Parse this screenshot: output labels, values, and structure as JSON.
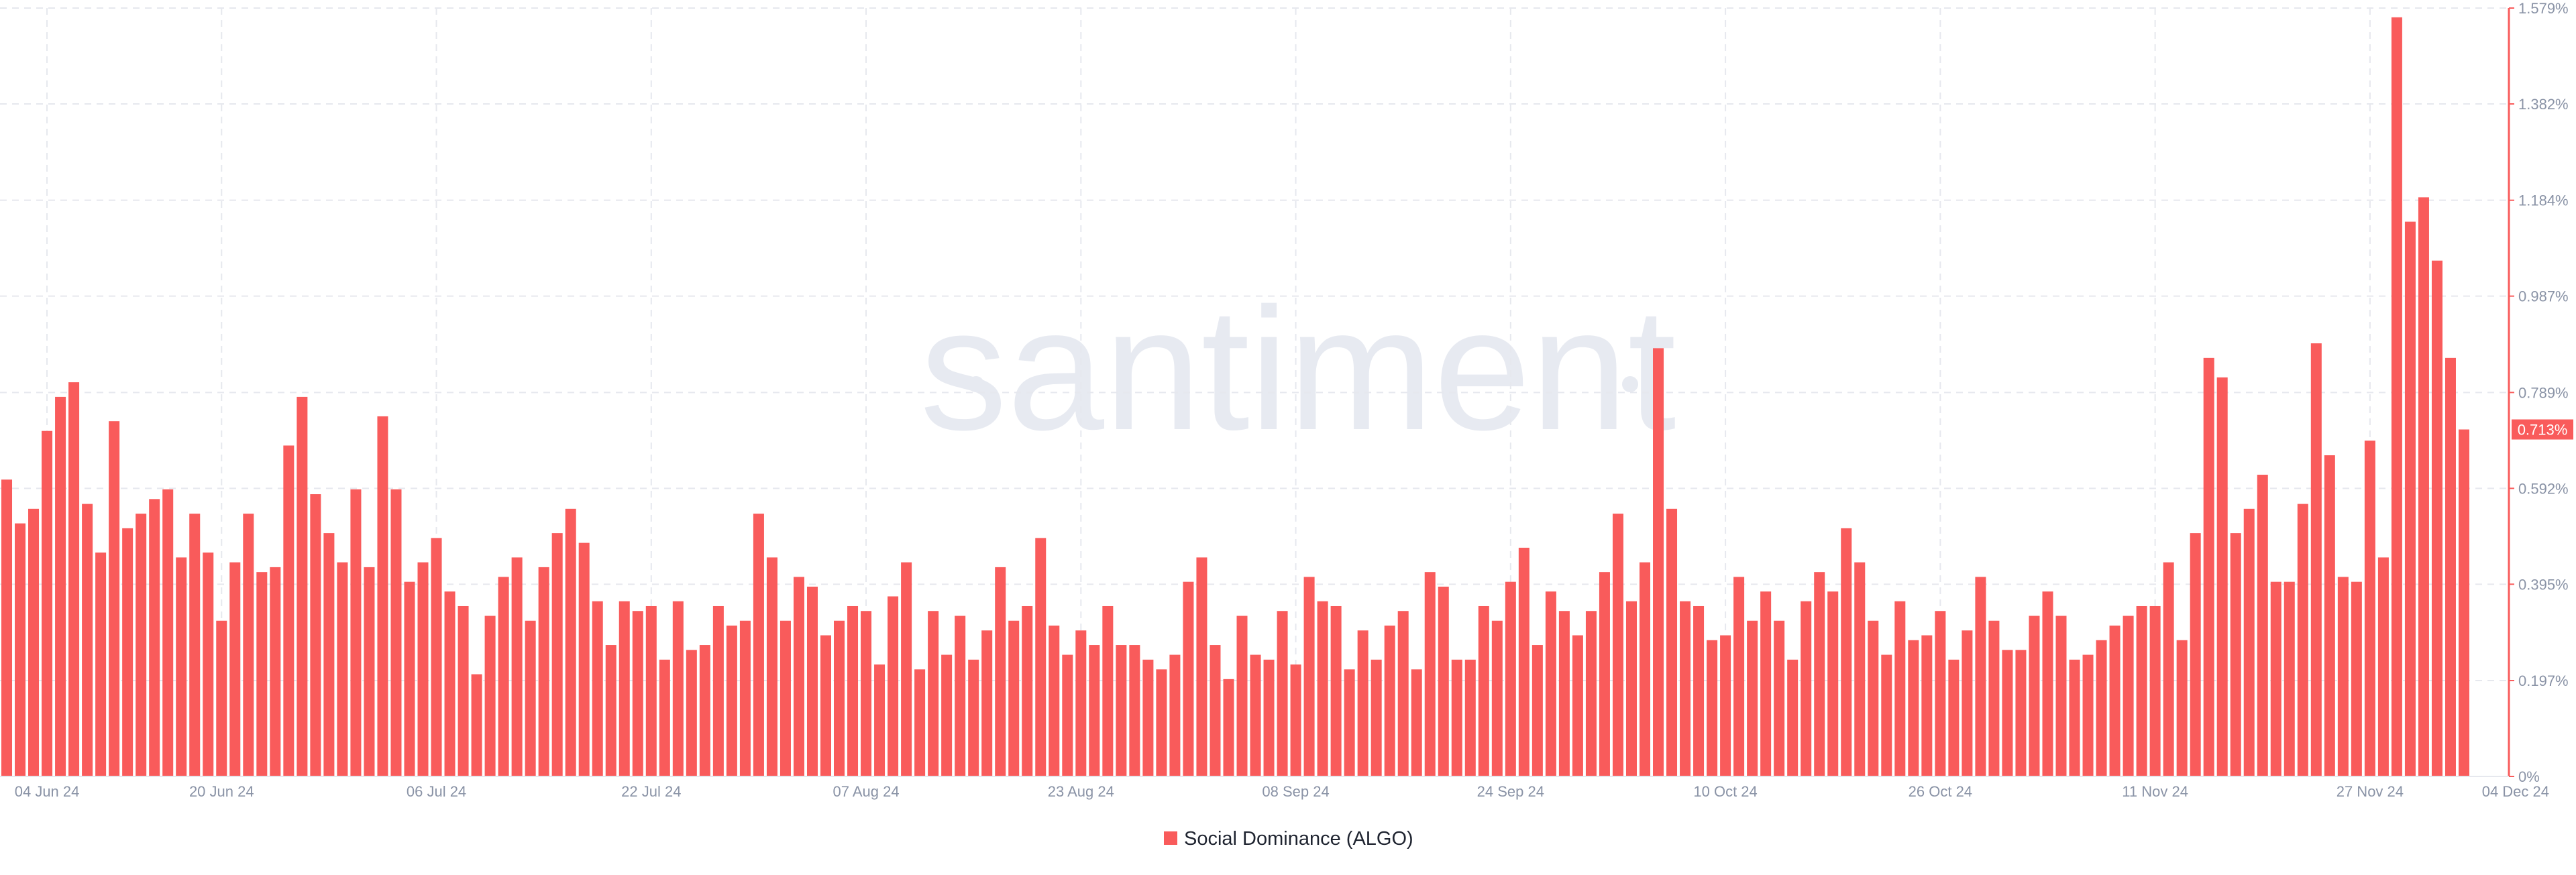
{
  "chart_data": {
    "type": "bar",
    "watermark": "santiment",
    "categories": [
      null,
      null,
      null,
      "04 Jun 24",
      null,
      null,
      null,
      null,
      null,
      null,
      null,
      null,
      null,
      null,
      null,
      null,
      "20 Jun 24",
      null,
      null,
      null,
      null,
      null,
      null,
      null,
      null,
      null,
      null,
      null,
      null,
      null,
      null,
      null,
      "06 Jul 24",
      null,
      null,
      null,
      null,
      null,
      null,
      null,
      null,
      null,
      null,
      null,
      null,
      null,
      null,
      null,
      "22 Jul 24",
      null,
      null,
      null,
      null,
      null,
      null,
      null,
      null,
      null,
      null,
      null,
      null,
      null,
      null,
      null,
      "07 Aug 24",
      null,
      null,
      null,
      null,
      null,
      null,
      null,
      null,
      null,
      null,
      null,
      null,
      null,
      null,
      null,
      "23 Aug 24",
      null,
      null,
      null,
      null,
      null,
      null,
      null,
      null,
      null,
      null,
      null,
      null,
      null,
      null,
      null,
      "08 Sep 24",
      null,
      null,
      null,
      null,
      null,
      null,
      null,
      null,
      null,
      null,
      null,
      null,
      null,
      null,
      null,
      "24 Sep 24",
      null,
      null,
      null,
      null,
      null,
      null,
      null,
      null,
      null,
      null,
      null,
      null,
      null,
      null,
      null,
      "10 Oct 24",
      null,
      null,
      null,
      null,
      null,
      null,
      null,
      null,
      null,
      null,
      null,
      null,
      null,
      null,
      null,
      "26 Oct 24",
      null,
      null,
      null,
      null,
      null,
      null,
      null,
      null,
      null,
      null,
      null,
      null,
      null,
      null,
      null,
      "11 Nov 24",
      null,
      null,
      null,
      null,
      null,
      null,
      null,
      null,
      null,
      null,
      null,
      null,
      null,
      null,
      null,
      "27 Nov 24",
      null,
      null,
      null,
      null,
      null,
      null,
      "04 Dec 24"
    ],
    "series": [
      {
        "name": "Social Dominance (ALGO)",
        "color": "#f95b5b",
        "values": [
          0.61,
          0.52,
          0.55,
          0.71,
          0.78,
          0.81,
          0.56,
          0.46,
          0.73,
          0.51,
          0.54,
          0.57,
          0.59,
          0.45,
          0.54,
          0.46,
          0.32,
          0.44,
          0.54,
          0.42,
          0.43,
          0.68,
          0.78,
          0.58,
          0.5,
          0.44,
          0.59,
          0.43,
          0.74,
          0.59,
          0.4,
          0.44,
          0.49,
          0.38,
          0.35,
          0.21,
          0.33,
          0.41,
          0.45,
          0.32,
          0.43,
          0.5,
          0.55,
          0.48,
          0.36,
          0.27,
          0.36,
          0.34,
          0.35,
          0.24,
          0.36,
          0.26,
          0.27,
          0.35,
          0.31,
          0.32,
          0.54,
          0.45,
          0.32,
          0.41,
          0.39,
          0.29,
          0.32,
          0.35,
          0.34,
          0.23,
          0.37,
          0.44,
          0.22,
          0.34,
          0.25,
          0.33,
          0.24,
          0.3,
          0.43,
          0.32,
          0.35,
          0.49,
          0.31,
          0.25,
          0.3,
          0.27,
          0.35,
          0.27,
          0.27,
          0.24,
          0.22,
          0.25,
          0.4,
          0.45,
          0.27,
          0.2,
          0.33,
          0.25,
          0.24,
          0.34,
          0.23,
          0.41,
          0.36,
          0.35,
          0.22,
          0.3,
          0.24,
          0.31,
          0.34,
          0.22,
          0.42,
          0.39,
          0.24,
          0.24,
          0.35,
          0.32,
          0.4,
          0.47,
          0.27,
          0.38,
          0.34,
          0.29,
          0.34,
          0.42,
          0.54,
          0.36,
          0.44,
          0.88,
          0.55,
          0.36,
          0.35,
          0.28,
          0.29,
          0.41,
          0.32,
          0.38,
          0.32,
          0.24,
          0.36,
          0.42,
          0.38,
          0.51,
          0.44,
          0.32,
          0.25,
          0.36,
          0.28,
          0.29,
          0.34,
          0.24,
          0.3,
          0.41,
          0.32,
          0.26,
          0.26,
          0.33,
          0.38,
          0.33,
          0.24,
          0.25,
          0.28,
          0.31,
          0.33,
          0.35,
          0.35,
          0.44,
          0.28,
          0.5,
          0.86,
          0.82,
          0.5,
          0.55,
          0.62,
          0.4,
          0.4,
          0.56,
          0.89,
          0.66,
          0.41,
          0.4,
          0.69,
          0.45,
          1.56,
          1.14,
          1.19,
          1.06,
          0.86,
          0.713
        ],
        "value_labels": [
          null,
          null,
          null,
          null,
          null,
          null,
          null,
          null,
          null,
          null,
          null,
          null,
          null,
          null,
          null,
          null,
          null,
          null,
          null,
          null,
          null,
          null,
          null,
          null,
          null,
          null,
          null,
          null,
          null,
          null,
          null,
          null,
          null,
          null,
          null,
          null,
          null,
          null,
          null,
          null,
          null,
          null,
          null,
          null,
          null,
          null,
          null,
          null,
          null,
          null,
          null,
          null,
          null,
          null,
          null,
          null,
          null,
          null,
          null,
          null,
          null,
          null,
          null,
          null,
          null,
          null,
          null,
          null,
          null,
          null,
          null,
          null,
          null,
          null,
          null,
          null,
          null,
          null,
          null,
          null,
          null,
          null,
          null,
          null,
          null,
          null,
          null,
          null,
          null,
          null,
          null,
          null,
          null,
          null,
          null,
          null,
          null,
          null,
          null,
          null,
          null,
          null,
          null,
          null,
          null,
          null,
          null,
          null,
          null,
          null,
          null,
          null,
          null,
          null,
          null,
          null,
          null,
          null,
          null,
          null,
          null,
          null,
          null,
          null,
          null,
          null,
          null,
          null,
          null,
          null,
          null,
          null,
          null,
          null,
          null,
          null,
          null,
          null,
          null,
          null,
          null,
          null,
          null,
          null,
          null,
          null,
          null,
          null,
          null,
          null,
          null,
          null,
          null,
          null,
          null,
          null,
          null,
          null,
          null,
          null,
          null,
          null,
          null,
          null,
          null,
          null,
          null,
          null,
          null,
          null,
          null,
          null,
          null,
          null,
          null,
          null,
          null,
          null,
          null,
          null,
          null,
          null,
          null,
          "0.713%"
        ]
      }
    ],
    "ylim": [
      0,
      1.579
    ],
    "yticks": [
      {
        "value": 0,
        "label": "0%"
      },
      {
        "value": 0.197,
        "label": "0.197%"
      },
      {
        "value": 0.395,
        "label": "0.395%"
      },
      {
        "value": 0.592,
        "label": "0.592%"
      },
      {
        "value": 0.789,
        "label": "0.789%"
      },
      {
        "value": 0.987,
        "label": "0.987%"
      },
      {
        "value": 1.184,
        "label": "1.184%"
      },
      {
        "value": 1.382,
        "label": "1.382%"
      },
      {
        "value": 1.579,
        "label": "1.579%"
      }
    ],
    "grid": true,
    "legend": "bottom"
  }
}
